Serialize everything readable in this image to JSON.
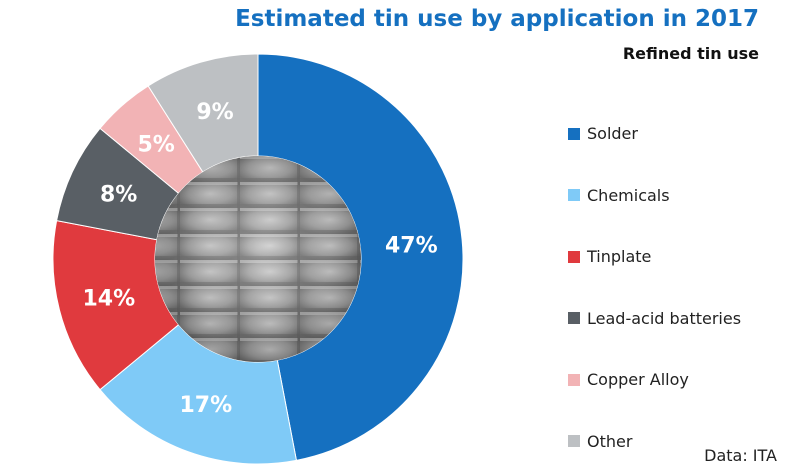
{
  "chart_data": {
    "type": "pie",
    "title": "Estimated tin use by application in 2017",
    "subtitle": "Refined tin use",
    "source": "Data: ITA",
    "categories": [
      "Solder",
      "Chemicals",
      "Tinplate",
      "Lead-acid batteries",
      "Copper Alloy",
      "Other"
    ],
    "values": [
      47,
      17,
      14,
      8,
      5,
      9
    ],
    "labels": [
      "47%",
      "17%",
      "14%",
      "8%",
      "5%",
      "9%"
    ],
    "colors": [
      "#1570c0",
      "#7fcaf7",
      "#e03a3e",
      "#595f65",
      "#f2b3b5",
      "#bdc0c3"
    ],
    "donut": true,
    "legend": "right"
  }
}
